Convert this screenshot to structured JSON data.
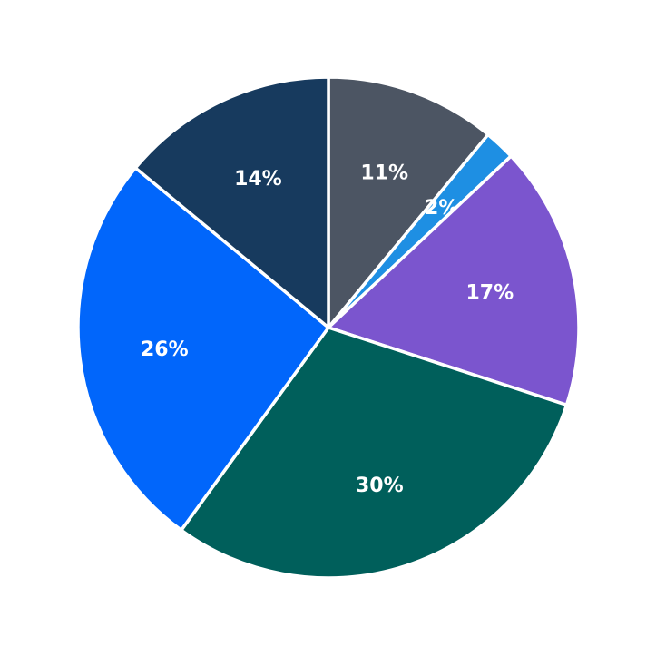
{
  "chart_data": {
    "type": "pie",
    "title": "",
    "legend": "none",
    "background": "#ffffff",
    "label_color": "#ffffff",
    "edge_color": "#ffffff",
    "direction": "clockwise",
    "start_angle_clockwise_from_top_deg": 0,
    "pct_label_distance_fraction": 0.66,
    "slices": [
      {
        "label": "11%",
        "value": 11,
        "color": "#4C5563"
      },
      {
        "label": "2%",
        "value": 2,
        "color": "#1E8FE3"
      },
      {
        "label": "17%",
        "value": 17,
        "color": "#7B55CE"
      },
      {
        "label": "30%",
        "value": 30,
        "color": "#005F5B"
      },
      {
        "label": "26%",
        "value": 26,
        "color": "#0166FB"
      },
      {
        "label": "14%",
        "value": 14,
        "color": "#173A5E"
      }
    ]
  }
}
